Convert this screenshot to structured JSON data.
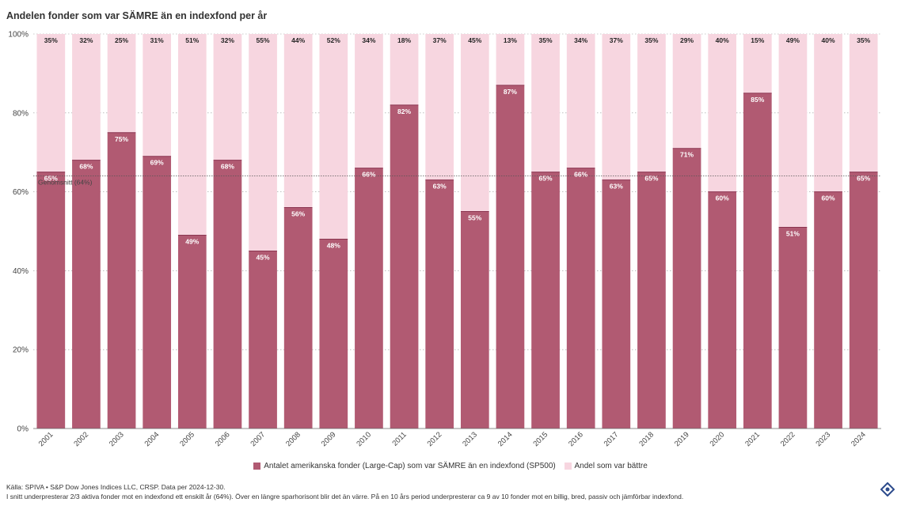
{
  "title": "Andelen fonder som var SÄMRE än en indexfond per år",
  "colors": {
    "worse": "#b15a72",
    "better": "#f7d6e0",
    "grid": "#999999",
    "logo": "#2b4a8b"
  },
  "chart_data": {
    "type": "bar",
    "stacked": true,
    "categories": [
      "2001",
      "2002",
      "2003",
      "2004",
      "2005",
      "2006",
      "2007",
      "2008",
      "2009",
      "2010",
      "2011",
      "2012",
      "2013",
      "2014",
      "2015",
      "2016",
      "2017",
      "2018",
      "2019",
      "2020",
      "2021",
      "2022",
      "2023",
      "2024"
    ],
    "series": [
      {
        "name": "Antalet amerikanska fonder (Large-Cap) som var SÄMRE än en indexfond (SP500)",
        "values": [
          65,
          68,
          75,
          69,
          49,
          68,
          45,
          56,
          48,
          66,
          82,
          63,
          55,
          87,
          65,
          66,
          63,
          65,
          71,
          60,
          85,
          51,
          60,
          65
        ],
        "labels": [
          "65%",
          "68%",
          "75%",
          "69%",
          "49%",
          "68%",
          "45%",
          "56%",
          "48%",
          "66%",
          "82%",
          "63%",
          "55%",
          "87%",
          "65%",
          "66%",
          "63%",
          "65%",
          "71%",
          "60%",
          "85%",
          "51%",
          "60%",
          "65%"
        ]
      },
      {
        "name": "Andel som var bättre",
        "values": [
          35,
          32,
          25,
          31,
          51,
          32,
          55,
          44,
          52,
          34,
          18,
          37,
          45,
          13,
          35,
          34,
          37,
          35,
          29,
          40,
          15,
          49,
          40,
          35
        ],
        "labels": [
          "35%",
          "32%",
          "25%",
          "31%",
          "51%",
          "32%",
          "55%",
          "44%",
          "52%",
          "34%",
          "18%",
          "37%",
          "45%",
          "13%",
          "35%",
          "34%",
          "37%",
          "35%",
          "29%",
          "40%",
          "15%",
          "49%",
          "40%",
          "35%"
        ]
      }
    ],
    "ylim": [
      0,
      100
    ],
    "yticks": [
      0,
      20,
      40,
      60,
      80,
      100
    ],
    "ytick_labels": [
      "0%",
      "20%",
      "40%",
      "60%",
      "80%",
      "100%"
    ],
    "average": {
      "value": 64,
      "label": "Genomsnitt (64%)"
    },
    "legend_position": "bottom-center"
  },
  "legend": {
    "worse_label": "Antalet amerikanska fonder (Large-Cap) som var SÄMRE än en indexfond (SP500)",
    "better_label": "Andel som var bättre"
  },
  "footer": {
    "source": "Källa: SPIVA • S&P Dow Jones Indices LLC, CRSP. Data per 2024-12-30.",
    "note": "I snitt underpresterar 2/3 aktiva fonder mot en indexfond ett enskilt år (64%). Över en längre sparhorisont blir det än värre. På en 10 års period underpresterar ca 9 av 10 fonder mot en billig, bred, passiv och jämförbar indexfond."
  },
  "logo_icon": "diamond-logo-icon"
}
